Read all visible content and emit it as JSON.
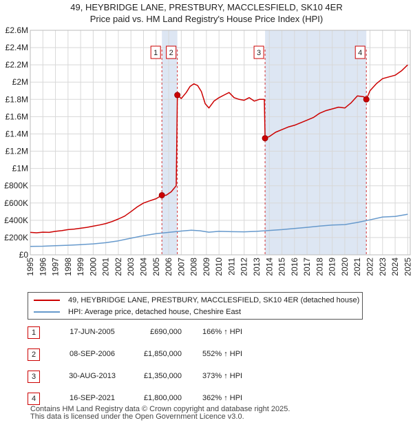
{
  "title_line1": "49, HEYBRIDGE LANE, PRESTBURY, MACCLESFIELD, SK10 4ER",
  "title_line2": "Price paid vs. HM Land Registry's House Price Index (HPI)",
  "colors": {
    "property": "#cc0000",
    "hpi": "#6699cc",
    "shade": "#dde6f3",
    "grid": "#d8d8d8",
    "marker_border": "#cc0000"
  },
  "chart_data": {
    "type": "line",
    "title": "49, HEYBRIDGE LANE, PRESTBURY, MACCLESFIELD, SK10 4ER — Price paid vs. HM Land Registry's House Price Index (HPI)",
    "xlim": [
      1995,
      2025.2
    ],
    "ylim": [
      0,
      2600000
    ],
    "x_ticks": [
      1995,
      1996,
      1997,
      1998,
      1999,
      2000,
      2001,
      2002,
      2003,
      2004,
      2005,
      2006,
      2007,
      2008,
      2009,
      2010,
      2011,
      2012,
      2013,
      2014,
      2015,
      2016,
      2017,
      2018,
      2019,
      2020,
      2021,
      2022,
      2023,
      2024,
      2025
    ],
    "y_ticks": [
      {
        "value": 0,
        "label": "£0"
      },
      {
        "value": 200000,
        "label": "£200K"
      },
      {
        "value": 400000,
        "label": "£400K"
      },
      {
        "value": 600000,
        "label": "£600K"
      },
      {
        "value": 800000,
        "label": "£800K"
      },
      {
        "value": 1000000,
        "label": "£1M"
      },
      {
        "value": 1200000,
        "label": "£1.2M"
      },
      {
        "value": 1400000,
        "label": "£1.4M"
      },
      {
        "value": 1600000,
        "label": "£1.6M"
      },
      {
        "value": 1800000,
        "label": "£1.8M"
      },
      {
        "value": 2000000,
        "label": "£2M"
      },
      {
        "value": 2200000,
        "label": "£2.2M"
      },
      {
        "value": 2400000,
        "label": "£2.4M"
      },
      {
        "value": 2600000,
        "label": "£2.6M"
      }
    ],
    "shaded_ranges": [
      [
        2005.46,
        2006.69
      ],
      [
        2013.66,
        2021.71
      ]
    ],
    "series": [
      {
        "name": "49, HEYBRIDGE LANE, PRESTBURY, MACCLESFIELD, SK10 4ER (detached house)",
        "color": "#cc0000",
        "points": [
          [
            1995.0,
            260000
          ],
          [
            1995.5,
            255000
          ],
          [
            1996.0,
            262000
          ],
          [
            1996.5,
            260000
          ],
          [
            1997.0,
            272000
          ],
          [
            1997.5,
            280000
          ],
          [
            1998.0,
            292000
          ],
          [
            1998.5,
            298000
          ],
          [
            1999.0,
            308000
          ],
          [
            1999.5,
            318000
          ],
          [
            2000.0,
            332000
          ],
          [
            2000.5,
            345000
          ],
          [
            2001.0,
            362000
          ],
          [
            2001.5,
            385000
          ],
          [
            2002.0,
            415000
          ],
          [
            2002.5,
            448000
          ],
          [
            2003.0,
            500000
          ],
          [
            2003.5,
            555000
          ],
          [
            2004.0,
            600000
          ],
          [
            2004.5,
            625000
          ],
          [
            2005.0,
            650000
          ],
          [
            2005.46,
            690000
          ],
          [
            2005.8,
            690000
          ],
          [
            2006.2,
            730000
          ],
          [
            2006.6,
            800000
          ],
          [
            2006.69,
            1850000
          ],
          [
            2007.0,
            1810000
          ],
          [
            2007.4,
            1880000
          ],
          [
            2007.7,
            1950000
          ],
          [
            2008.0,
            1980000
          ],
          [
            2008.3,
            1960000
          ],
          [
            2008.6,
            1890000
          ],
          [
            2008.9,
            1750000
          ],
          [
            2009.2,
            1700000
          ],
          [
            2009.6,
            1780000
          ],
          [
            2010.0,
            1820000
          ],
          [
            2010.4,
            1850000
          ],
          [
            2010.8,
            1880000
          ],
          [
            2011.2,
            1820000
          ],
          [
            2011.6,
            1800000
          ],
          [
            2012.0,
            1790000
          ],
          [
            2012.4,
            1820000
          ],
          [
            2012.8,
            1780000
          ],
          [
            2013.2,
            1800000
          ],
          [
            2013.6,
            1800000
          ],
          [
            2013.66,
            1350000
          ],
          [
            2014.0,
            1370000
          ],
          [
            2014.5,
            1420000
          ],
          [
            2015.0,
            1450000
          ],
          [
            2015.5,
            1480000
          ],
          [
            2016.0,
            1500000
          ],
          [
            2016.5,
            1530000
          ],
          [
            2017.0,
            1560000
          ],
          [
            2017.5,
            1590000
          ],
          [
            2018.0,
            1640000
          ],
          [
            2018.5,
            1670000
          ],
          [
            2019.0,
            1690000
          ],
          [
            2019.5,
            1710000
          ],
          [
            2020.0,
            1700000
          ],
          [
            2020.5,
            1760000
          ],
          [
            2021.0,
            1840000
          ],
          [
            2021.5,
            1830000
          ],
          [
            2021.71,
            1800000
          ],
          [
            2022.0,
            1900000
          ],
          [
            2022.5,
            1980000
          ],
          [
            2023.0,
            2040000
          ],
          [
            2023.5,
            2060000
          ],
          [
            2024.0,
            2080000
          ],
          [
            2024.5,
            2130000
          ],
          [
            2025.0,
            2200000
          ]
        ]
      },
      {
        "name": "HPI: Average price, detached house, Cheshire East",
        "color": "#6699cc",
        "points": [
          [
            1995.0,
            98000
          ],
          [
            1996.0,
            100000
          ],
          [
            1997.0,
            105000
          ],
          [
            1998.0,
            111000
          ],
          [
            1999.0,
            118000
          ],
          [
            2000.0,
            127000
          ],
          [
            2001.0,
            140000
          ],
          [
            2002.0,
            162000
          ],
          [
            2003.0,
            192000
          ],
          [
            2004.0,
            222000
          ],
          [
            2005.0,
            245000
          ],
          [
            2006.0,
            260000
          ],
          [
            2007.0,
            275000
          ],
          [
            2007.8,
            285000
          ],
          [
            2008.5,
            278000
          ],
          [
            2009.2,
            262000
          ],
          [
            2010.0,
            272000
          ],
          [
            2011.0,
            268000
          ],
          [
            2012.0,
            266000
          ],
          [
            2013.0,
            272000
          ],
          [
            2014.0,
            282000
          ],
          [
            2015.0,
            292000
          ],
          [
            2016.0,
            305000
          ],
          [
            2017.0,
            318000
          ],
          [
            2018.0,
            333000
          ],
          [
            2019.0,
            345000
          ],
          [
            2020.0,
            350000
          ],
          [
            2021.0,
            375000
          ],
          [
            2022.0,
            405000
          ],
          [
            2023.0,
            438000
          ],
          [
            2024.0,
            445000
          ],
          [
            2025.0,
            470000
          ]
        ]
      }
    ],
    "transactions": [
      {
        "num": "1",
        "x": 2005.46,
        "price": 690000
      },
      {
        "num": "2",
        "x": 2006.69,
        "price": 1850000
      },
      {
        "num": "3",
        "x": 2013.66,
        "price": 1350000
      },
      {
        "num": "4",
        "x": 2021.71,
        "price": 1800000
      }
    ]
  },
  "legend": {
    "property_label": "49, HEYBRIDGE LANE, PRESTBURY, MACCLESFIELD, SK10 4ER (detached house)",
    "hpi_label": "HPI: Average price, detached house, Cheshire East"
  },
  "table": [
    {
      "num": "1",
      "date": "17-JUN-2005",
      "price": "£690,000",
      "hpi": "166% ↑ HPI"
    },
    {
      "num": "2",
      "date": "08-SEP-2006",
      "price": "£1,850,000",
      "hpi": "552% ↑ HPI"
    },
    {
      "num": "3",
      "date": "30-AUG-2013",
      "price": "£1,350,000",
      "hpi": "373% ↑ HPI"
    },
    {
      "num": "4",
      "date": "16-SEP-2021",
      "price": "£1,800,000",
      "hpi": "362% ↑ HPI"
    }
  ],
  "footer": {
    "line1": "Contains HM Land Registry data © Crown copyright and database right 2025.",
    "line2": "This data is licensed under the Open Government Licence v3.0."
  }
}
